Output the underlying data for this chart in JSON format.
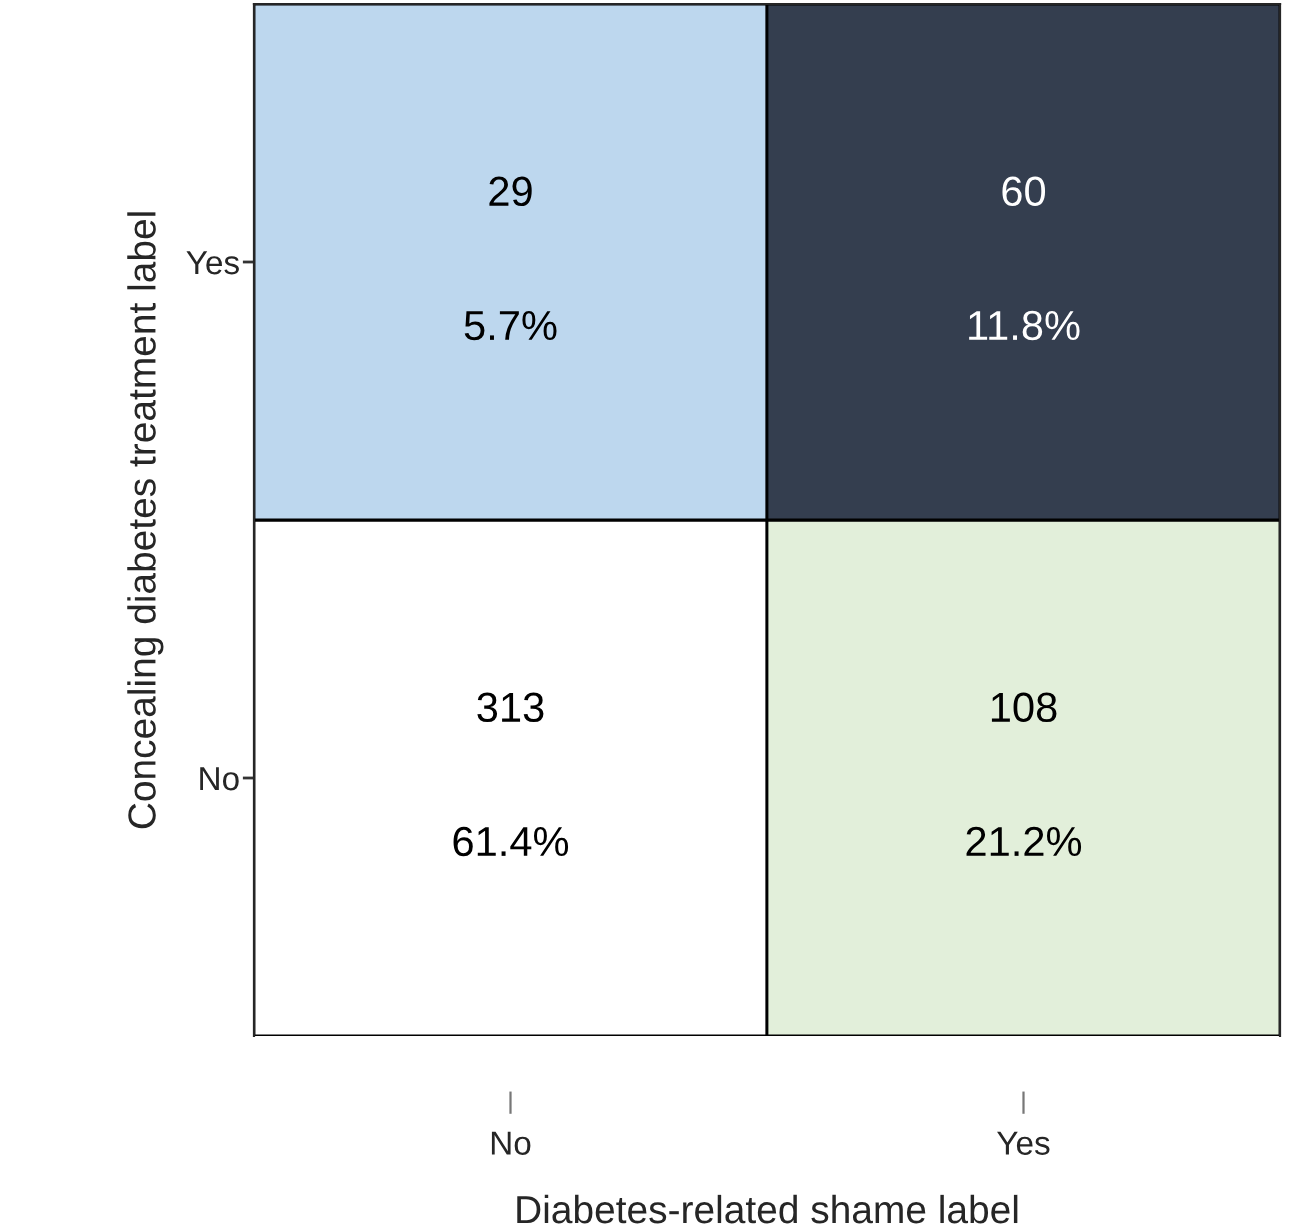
{
  "chart_data": {
    "type": "heatmap",
    "xlabel": "Diabetes-related shame label",
    "ylabel": "Concealing diabetes treatment label",
    "categories": [
      "No",
      "Yes"
    ],
    "y_categories": [
      "Yes",
      "No"
    ],
    "cells": [
      [
        29,
        60
      ],
      [
        313,
        108
      ]
    ],
    "data_labels": true,
    "annotations": [
      "5.7%",
      "11.8%",
      "61.4%",
      "21.2%"
    ],
    "colors": [
      "#bdd7ee",
      "#343e4f",
      "#ffffff",
      "#e2efda"
    ]
  }
}
